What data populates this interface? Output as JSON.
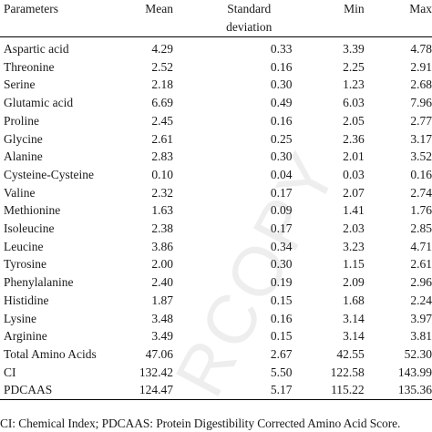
{
  "watermark": "RCOPY",
  "table": {
    "headers": {
      "parameters": "Parameters",
      "mean": "Mean",
      "sd_line1": "Standard",
      "sd_line2": "deviation",
      "min": "Min",
      "max": "Max"
    },
    "rows": [
      {
        "name": "Aspartic acid",
        "mean": "4.29",
        "sd": "0.33",
        "min": "3.39",
        "max": "4.78"
      },
      {
        "name": "Threonine",
        "mean": "2.52",
        "sd": "0.16",
        "min": "2.25",
        "max": "2.91"
      },
      {
        "name": "Serine",
        "mean": "2.18",
        "sd": "0.30",
        "min": "1.23",
        "max": "2.68"
      },
      {
        "name": "Glutamic acid",
        "mean": "6.69",
        "sd": "0.49",
        "min": "6.03",
        "max": "7.96"
      },
      {
        "name": "Proline",
        "mean": "2.45",
        "sd": "0.16",
        "min": "2.05",
        "max": "2.77"
      },
      {
        "name": "Glycine",
        "mean": "2.61",
        "sd": "0.25",
        "min": "2.36",
        "max": "3.17"
      },
      {
        "name": "Alanine",
        "mean": "2.83",
        "sd": "0.30",
        "min": "2.01",
        "max": "3.52"
      },
      {
        "name": "Cysteine-Cysteine",
        "mean": "0.10",
        "sd": "0.04",
        "min": "0.03",
        "max": "0.16"
      },
      {
        "name": "Valine",
        "mean": "2.32",
        "sd": "0.17",
        "min": "2.07",
        "max": "2.74"
      },
      {
        "name": "Methionine",
        "mean": "1.63",
        "sd": "0.09",
        "min": "1.41",
        "max": "1.76"
      },
      {
        "name": "Isoleucine",
        "mean": "2.38",
        "sd": "0.17",
        "min": "2.03",
        "max": "2.85"
      },
      {
        "name": "Leucine",
        "mean": "3.86",
        "sd": "0.34",
        "min": "3.23",
        "max": "4.71"
      },
      {
        "name": "Tyrosine",
        "mean": "2.00",
        "sd": "0.30",
        "min": "1.15",
        "max": "2.61"
      },
      {
        "name": "Phenylalanine",
        "mean": "2.40",
        "sd": "0.19",
        "min": "2.09",
        "max": "2.96"
      },
      {
        "name": "Histidine",
        "mean": "1.87",
        "sd": "0.15",
        "min": "1.68",
        "max": "2.24"
      },
      {
        "name": "Lysine",
        "mean": "3.48",
        "sd": "0.16",
        "min": "3.14",
        "max": "3.97"
      },
      {
        "name": "Arginine",
        "mean": "3.49",
        "sd": "0.15",
        "min": "3.14",
        "max": "3.81"
      },
      {
        "name": "Total Amino Acids",
        "mean": "47.06",
        "sd": "2.67",
        "min": "42.55",
        "max": "52.30"
      },
      {
        "name": "CI",
        "mean": "132.42",
        "sd": "5.50",
        "min": "122.58",
        "max": "143.99"
      },
      {
        "name": "PDCAAS",
        "mean": "124.47",
        "sd": "5.17",
        "min": "115.22",
        "max": "135.36"
      }
    ]
  },
  "footnote": "CI: Chemical Index; PDCAAS: Protein Digestibility Corrected Amino Acid Score."
}
